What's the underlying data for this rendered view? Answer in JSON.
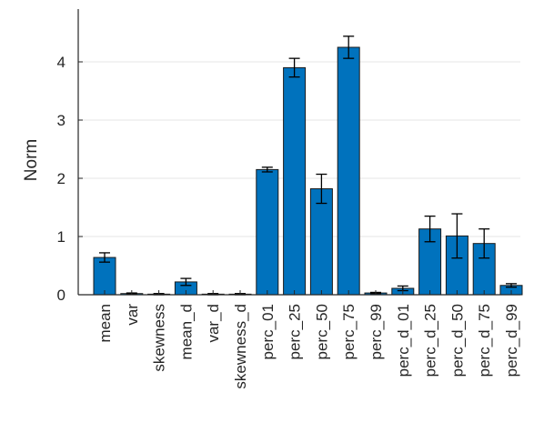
{
  "chart_data": {
    "type": "bar",
    "title": "",
    "xlabel": "",
    "ylabel": "Norm",
    "ylim": [
      0,
      4.75
    ],
    "yticks": [
      0,
      1,
      2,
      3,
      4
    ],
    "grid": "horizontal",
    "bar_color": "#0072BD",
    "categories": [
      "mean",
      "var",
      "skewness",
      "mean_d",
      "var_d",
      "skewness_d",
      "perc_01",
      "perc_25",
      "perc_50",
      "perc_75",
      "perc_99",
      "perc_d_01",
      "perc_d_25",
      "perc_d_50",
      "perc_d_75",
      "perc_d_99"
    ],
    "values": [
      0.64,
      0.02,
      0.01,
      0.22,
      0.01,
      0.01,
      2.15,
      3.9,
      1.82,
      4.25,
      0.03,
      0.11,
      1.13,
      1.01,
      0.88,
      0.16
    ],
    "error": [
      0.08,
      0.01,
      0.01,
      0.06,
      0.01,
      0.01,
      0.04,
      0.16,
      0.25,
      0.19,
      0.01,
      0.04,
      0.22,
      0.38,
      0.25,
      0.03
    ]
  }
}
